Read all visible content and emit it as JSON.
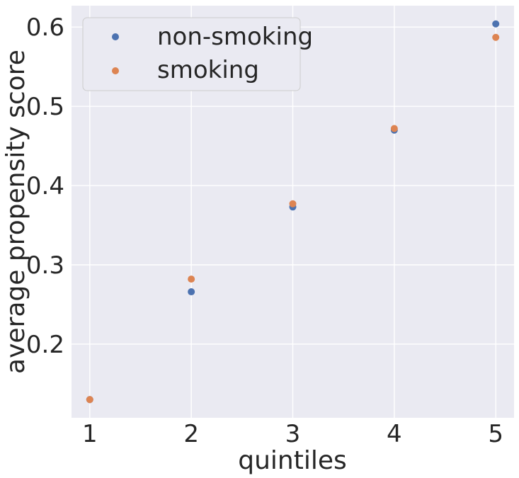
{
  "chart_data": {
    "type": "scatter",
    "xlabel": "quintiles",
    "ylabel": "average propensity score",
    "x": [
      1,
      2,
      3,
      4,
      5
    ],
    "xticks": [
      "1",
      "2",
      "3",
      "4",
      "5"
    ],
    "yticks": [
      "0.2",
      "0.3",
      "0.4",
      "0.5",
      "0.6"
    ],
    "xlim": [
      0.82,
      5.18
    ],
    "ylim": [
      0.107,
      0.627
    ],
    "grid": true,
    "legend_position": "top-left",
    "series": [
      {
        "name": "non-smoking",
        "color": "#4c72b0",
        "values": [
          0.13,
          0.266,
          0.373,
          0.47,
          0.604
        ]
      },
      {
        "name": "smoking",
        "color": "#dd8452",
        "values": [
          0.13,
          0.282,
          0.377,
          0.472,
          0.587
        ]
      }
    ]
  }
}
